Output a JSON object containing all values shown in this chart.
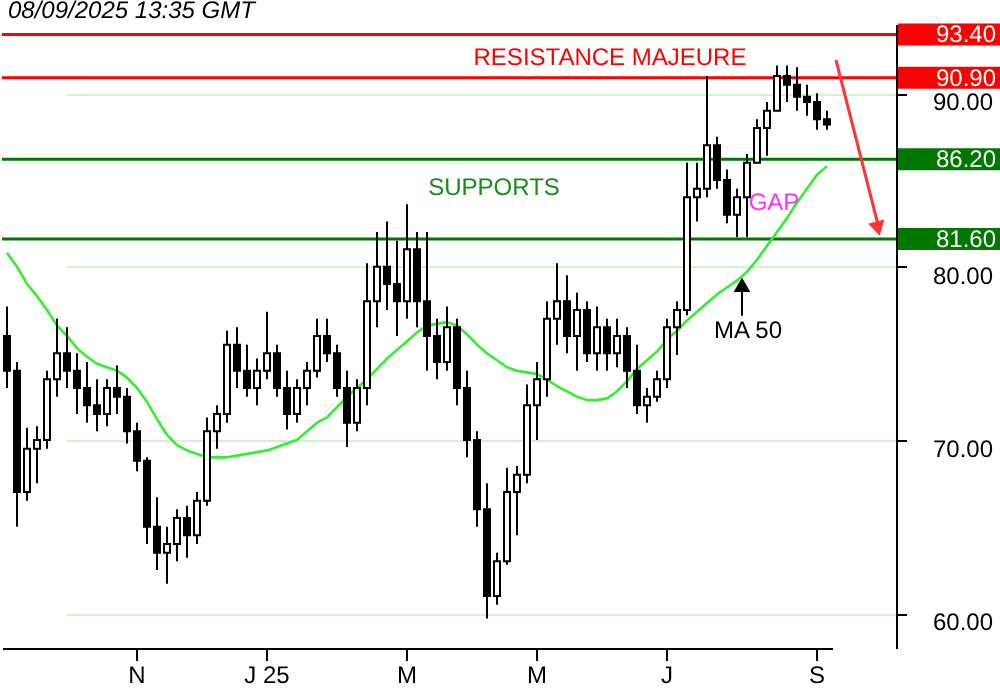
{
  "chart_data": {
    "type": "candlestick",
    "title": "08/09/2025 13:35 GMT",
    "categories": [
      null,
      null,
      null,
      null,
      null,
      null,
      null,
      null,
      null,
      null,
      null,
      null,
      null,
      "N",
      null,
      null,
      null,
      null,
      null,
      null,
      null,
      null,
      null,
      null,
      null,
      null,
      "J 25",
      null,
      null,
      null,
      null,
      null,
      null,
      null,
      null,
      null,
      null,
      null,
      null,
      null,
      "M",
      null,
      null,
      null,
      null,
      null,
      null,
      null,
      null,
      null,
      null,
      null,
      null,
      "M",
      null,
      null,
      null,
      null,
      null,
      null,
      null,
      null,
      null,
      null,
      null,
      null,
      "J",
      null,
      null,
      null,
      null,
      null,
      null,
      null,
      null,
      null,
      null,
      null,
      null,
      null,
      null,
      "S",
      null
    ],
    "color": "#000000",
    "ohlc": [
      [
        76,
        77.7,
        73,
        74
      ],
      [
        74,
        74.5,
        65,
        67
      ],
      [
        67,
        70.7,
        66.5,
        69.5
      ],
      [
        69.5,
        70.8,
        67.5,
        70
      ],
      [
        70,
        74,
        69.5,
        73.5
      ],
      [
        73.5,
        77,
        72.5,
        75
      ],
      [
        75,
        76.5,
        73,
        74
      ],
      [
        74,
        75,
        71.5,
        73
      ],
      [
        73,
        74.5,
        71,
        72
      ],
      [
        72,
        73.5,
        70.5,
        71.5
      ],
      [
        71.5,
        73.5,
        70.8,
        73
      ],
      [
        73,
        74.3,
        71.5,
        72.5
      ],
      [
        72.5,
        73,
        69.8,
        70.5
      ],
      [
        70.5,
        71,
        68.2,
        68.8
      ],
      [
        68.8,
        69,
        64,
        65
      ],
      [
        65,
        66.7,
        62.5,
        63.5
      ],
      [
        63.5,
        65,
        61.7,
        64
      ],
      [
        64,
        66,
        63,
        65.5
      ],
      [
        65.5,
        66.2,
        63.2,
        64.5
      ],
      [
        64.5,
        67,
        64,
        66.5
      ],
      [
        66.5,
        71.3,
        66.2,
        70.5
      ],
      [
        70.5,
        72,
        69.5,
        71.5
      ],
      [
        71.5,
        76.3,
        71,
        75.5
      ],
      [
        75.5,
        76.5,
        73,
        74
      ],
      [
        74,
        75.5,
        72.5,
        73
      ],
      [
        73,
        74.7,
        72,
        74
      ],
      [
        74,
        77.4,
        73.5,
        75
      ],
      [
        75,
        75.5,
        72.5,
        73
      ],
      [
        73,
        74,
        70.6,
        71.5
      ],
      [
        71.5,
        73.5,
        71,
        73
      ],
      [
        73,
        74.5,
        72,
        74
      ],
      [
        74,
        77,
        73.6,
        76
      ],
      [
        76,
        77,
        74.5,
        75
      ],
      [
        75,
        75.5,
        72.5,
        73
      ],
      [
        73,
        74,
        69.6,
        71
      ],
      [
        71,
        73.5,
        70.5,
        73
      ],
      [
        73,
        80.2,
        72,
        78
      ],
      [
        78,
        82,
        76.5,
        80
      ],
      [
        80,
        82.6,
        77.5,
        79
      ],
      [
        79,
        81.5,
        76,
        78
      ],
      [
        78,
        83.6,
        77,
        81
      ],
      [
        81,
        82,
        76.5,
        78
      ],
      [
        78,
        82,
        74,
        76
      ],
      [
        76,
        77,
        73.5,
        74.5
      ],
      [
        74.5,
        77.7,
        74,
        76.5
      ],
      [
        76.5,
        77,
        72,
        73
      ],
      [
        73,
        74,
        69,
        70
      ],
      [
        70,
        70.5,
        65,
        66
      ],
      [
        66,
        67.5,
        59.7,
        61
      ],
      [
        61,
        63.5,
        60.5,
        63
      ],
      [
        63,
        68.4,
        62.8,
        67
      ],
      [
        67,
        68.5,
        64.5,
        68
      ],
      [
        68,
        73.2,
        67.5,
        72
      ],
      [
        72,
        74.5,
        70,
        73.5
      ],
      [
        73.5,
        78,
        72.5,
        77
      ],
      [
        77,
        80.2,
        75.5,
        78
      ],
      [
        78,
        79.5,
        75,
        76
      ],
      [
        76,
        78.5,
        74,
        77.5
      ],
      [
        77.5,
        78,
        74.5,
        75
      ],
      [
        75,
        77.7,
        74,
        76.5
      ],
      [
        76.5,
        77,
        74,
        75
      ],
      [
        75,
        77,
        74.2,
        76
      ],
      [
        76,
        76.5,
        73,
        74
      ],
      [
        74,
        75.5,
        71.5,
        72
      ],
      [
        72,
        73,
        71,
        72.5
      ],
      [
        72.5,
        74,
        72.2,
        73.5
      ],
      [
        73.5,
        77,
        73,
        76.5
      ],
      [
        76.5,
        78,
        74.9,
        77.5
      ],
      [
        77.5,
        86,
        77.2,
        84
      ],
      [
        84,
        86,
        82.6,
        84.5
      ],
      [
        84.5,
        91,
        84,
        87
      ],
      [
        87,
        87.5,
        84.5,
        85
      ],
      [
        85,
        85.6,
        82.5,
        83
      ],
      [
        83,
        84.5,
        81.7,
        84
      ],
      [
        84,
        86.5,
        81.7,
        86
      ],
      [
        86,
        88.5,
        86,
        88
      ],
      [
        88,
        89.5,
        86.4,
        89
      ],
      [
        89,
        91.6,
        89,
        91
      ],
      [
        91,
        91.6,
        89.5,
        90.5
      ],
      [
        90.5,
        91.5,
        89,
        89.8
      ],
      [
        89.8,
        90.5,
        88.7,
        89.5
      ],
      [
        89.5,
        90,
        87.9,
        88.5
      ],
      [
        88.5,
        89,
        87.9,
        88.2
      ]
    ],
    "series": [
      {
        "name": "MA 50",
        "type": "line",
        "color": "#33ee33",
        "values": [
          80.8,
          80,
          79,
          78.3,
          77.5,
          76.6,
          76,
          75.3,
          74.8,
          74.4,
          74.2,
          74,
          73.6,
          73,
          72.2,
          71.2,
          70.3,
          69.7,
          69.4,
          69.2,
          69,
          69,
          69,
          69.1,
          69.2,
          69.3,
          69.4,
          69.6,
          69.8,
          70,
          70.5,
          71,
          71.3,
          71.9,
          72.5,
          73,
          73.5,
          74.1,
          74.7,
          75.2,
          75.7,
          76.2,
          76.6,
          76.7,
          76.8,
          76.6,
          76.1,
          75.5,
          75,
          74.6,
          74.2,
          74,
          73.9,
          73.8,
          73.5,
          73.1,
          72.8,
          72.5,
          72.3,
          72.3,
          72.4,
          72.8,
          73.4,
          74.1,
          74.6,
          75.1,
          75.8,
          76.3,
          76.9,
          77.4,
          77.9,
          78.4,
          78.8,
          79.2,
          79.7,
          80.4,
          81.2,
          82,
          82.8,
          83.7,
          84.5,
          85.3,
          85.8
        ]
      }
    ],
    "ylim": [
      58,
      94
    ],
    "yticks": [
      {
        "value": 60,
        "label": "60.00"
      },
      {
        "value": 70,
        "label": "70.00"
      },
      {
        "value": 80,
        "label": "80.00"
      },
      {
        "value": 90,
        "label": "90.00"
      }
    ],
    "grid": "y",
    "ref_lines": [
      {
        "axis": "y",
        "value": 93.4,
        "label": "93.40",
        "color": "#ff0000"
      },
      {
        "axis": "y",
        "value": 90.9,
        "label": "90.90",
        "color": "#ff0000"
      },
      {
        "axis": "y",
        "value": 86.2,
        "label": "86.20",
        "color": "#007700"
      },
      {
        "axis": "y",
        "value": 81.6,
        "label": "81.60",
        "color": "#007700"
      }
    ],
    "annotations": [
      "RESISTANCE MAJEURE",
      "SUPPORTS",
      "GAP"
    ]
  }
}
